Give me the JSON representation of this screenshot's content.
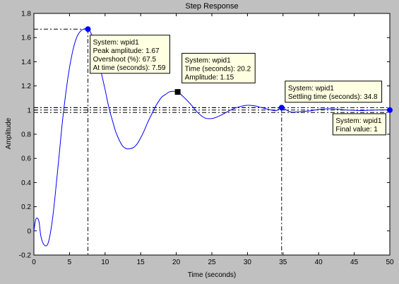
{
  "chart_data": {
    "type": "line",
    "title": "Step Response",
    "xlabel": "Time (seconds)",
    "ylabel": "Amplitude",
    "xlim": [
      0,
      50
    ],
    "ylim": [
      -0.2,
      1.8
    ],
    "xticks": [
      0,
      5,
      10,
      15,
      20,
      25,
      30,
      35,
      40,
      45,
      50
    ],
    "yticks": [
      -0.2,
      0,
      0.2,
      0.4,
      0.6,
      0.8,
      1,
      1.2,
      1.4,
      1.6,
      1.8
    ],
    "grid": false,
    "settling_band": [
      0.98,
      1.02
    ],
    "series": [
      {
        "color": "#0000ff",
        "x": [
          0,
          0.3,
          0.7,
          1.0,
          1.5,
          2.0,
          2.5,
          3.0,
          3.5,
          4.0,
          4.5,
          5.0,
          5.5,
          6.0,
          6.5,
          7.0,
          7.59,
          8.0,
          8.5,
          9.0,
          9.5,
          10.0,
          10.5,
          11.0,
          11.5,
          12.0,
          12.5,
          13.0,
          13.5,
          14.0,
          14.5,
          15.0,
          15.5,
          16.0,
          16.5,
          17.0,
          17.5,
          18.0,
          18.5,
          19.0,
          19.5,
          20.2,
          21.0,
          22.0,
          23.0,
          24.0,
          25.0,
          26.0,
          27.0,
          28.0,
          29.0,
          30.0,
          31.0,
          32.0,
          33.0,
          34.0,
          34.8,
          36.0,
          37.0,
          38.0,
          39.0,
          40.0,
          41.0,
          42.0,
          43.0,
          44.0,
          45.0,
          46.0,
          47.0,
          48.0,
          49.0,
          50.0
        ],
        "y": [
          0.0,
          0.1,
          0.08,
          -0.05,
          -0.12,
          -0.1,
          0.05,
          0.3,
          0.6,
          0.9,
          1.15,
          1.35,
          1.5,
          1.6,
          1.65,
          1.67,
          1.67,
          1.64,
          1.55,
          1.43,
          1.3,
          1.17,
          1.03,
          0.92,
          0.82,
          0.75,
          0.7,
          0.68,
          0.68,
          0.69,
          0.72,
          0.77,
          0.83,
          0.9,
          0.96,
          1.02,
          1.07,
          1.11,
          1.13,
          1.15,
          1.155,
          1.15,
          1.11,
          1.05,
          0.98,
          0.935,
          0.93,
          0.95,
          0.98,
          1.01,
          1.03,
          1.04,
          1.035,
          1.02,
          1.005,
          0.995,
          1.02,
          0.985,
          0.985,
          0.99,
          0.995,
          1.005,
          1.01,
          1.01,
          1.005,
          1.0,
          0.998,
          0.996,
          0.998,
          1.0,
          1.002,
          1.0
        ]
      }
    ],
    "markers": [
      {
        "x": 7.59,
        "y": 1.67,
        "shape": "circle",
        "guides": true
      },
      {
        "x": 20.2,
        "y": 1.15,
        "shape": "square",
        "guides": false
      },
      {
        "x": 34.8,
        "y": 1.02,
        "shape": "circle",
        "guides": true
      },
      {
        "x": 50,
        "y": 1.0,
        "shape": "circle",
        "guides": false
      }
    ],
    "annotations": [
      {
        "anchor": [
          7.9,
          1.62
        ],
        "lines": [
          "System: wpid1",
          "Peak amplitude: 1.67",
          "Overshoot (%): 67.5",
          "At time (seconds): 7.59"
        ]
      },
      {
        "anchor": [
          20.8,
          1.47
        ],
        "lines": [
          "System: wpid1",
          "Time (seconds): 20.2",
          "Amplitude: 1.15"
        ]
      },
      {
        "anchor": [
          35.3,
          1.24
        ],
        "lines": [
          "System: wpid1",
          "Settling time (seconds): 34.8"
        ]
      },
      {
        "anchor": [
          42.0,
          0.97
        ],
        "lines": [
          "System: wpid1",
          "Final value: 1"
        ]
      }
    ]
  }
}
